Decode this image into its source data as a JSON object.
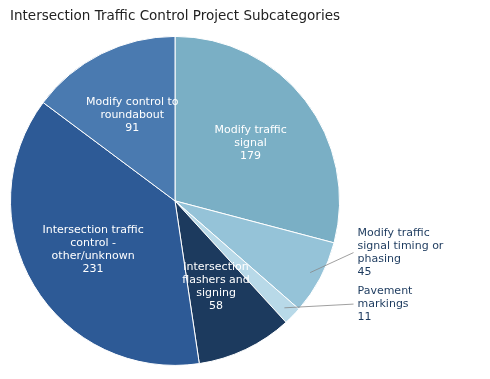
{
  "chart_data": {
    "type": "pie",
    "title": "Intersection Traffic Control Project Subcategories",
    "categories": [
      "Modify traffic\nsignal",
      "Modify traffic\nsignal timing or\nphasing",
      "Pavement\nmarkings",
      "Intersection\nflashers and\nsigning",
      "Intersection traffic\ncontrol -\nother/unknown",
      "Modify control to\nroundabout"
    ],
    "values": [
      179,
      45,
      11,
      58,
      231,
      91
    ],
    "colors": [
      "#7aafc5",
      "#95c3d8",
      "#b8d9e8",
      "#1c3a5e",
      "#2d5a96",
      "#4a7ab0"
    ],
    "data_labels": true
  }
}
